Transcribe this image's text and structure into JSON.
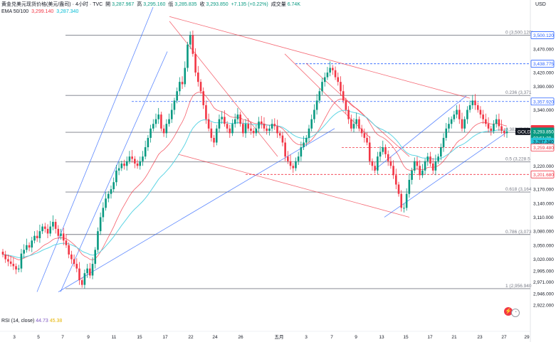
{
  "header": {
    "symbol": "黄金兑美元现货价格(美元/盎司)",
    "timeframe": "4小时",
    "source": "TVC",
    "open_label": "開",
    "open": "3,287.967",
    "high_label": "高",
    "high": "3,295.160",
    "low_label": "低",
    "low": "3,285.835",
    "close_label": "收",
    "close": "3,293.850",
    "change": "+7.135 (+0.22%)",
    "volume_label": "成交量",
    "volume": "6.74K"
  },
  "ema": {
    "label": "EMA 50/100",
    "ema50": "3,299.140",
    "ema100": "3,287.340",
    "ema50_color": "#f23645",
    "ema100_color": "#00bcd4"
  },
  "rsi": {
    "label": "RSI (14, close)",
    "value": "44.73",
    "ma": "45.38",
    "value_color": "#7e57c2",
    "ma_color": "#e6b400"
  },
  "currency": "USD",
  "buttons": {
    "flash": "⚡",
    "clock": "◔"
  },
  "chart_data": {
    "type": "candlestick",
    "ylim": [
      2905,
      3545
    ],
    "y_ticks": [
      "3,500.120",
      "3,470.000",
      "3,438.775",
      "3,420.000",
      "3,390.000",
      "3,357.920",
      "3,340.000",
      "3,299.140",
      "3,293.850",
      "3,287.340",
      "3,259.480",
      "3,220.000",
      "3,201.680",
      "3,170.000",
      "3,140.000",
      "3,110.000",
      "3,080.000",
      "3,050.000",
      "3,020.000",
      "2,995.000",
      "2,971.000",
      "2,946.000",
      "2,922.000"
    ],
    "x_ticks": [
      "3",
      "5",
      "7",
      "9",
      "11",
      "15",
      "17",
      "22",
      "24",
      "26",
      "五月",
      "3",
      "7",
      "9",
      "13",
      "15",
      "17",
      "21",
      "23",
      "27",
      "29"
    ],
    "fib_levels": [
      {
        "label": "0 (3,500.120)",
        "value": 3500.12
      },
      {
        "label": "0.236 (3,371",
        "value": 3371
      },
      {
        "label": "0.382 (3,29",
        "value": 3292
      },
      {
        "label": "0.5 (3,228.5",
        "value": 3228.5
      },
      {
        "label": "0.618 (3,164",
        "value": 3164
      },
      {
        "label": "0.786 (3,073",
        "value": 3073
      },
      {
        "label": "1 (2,956.940",
        "value": 2956.94
      }
    ],
    "price_tags": [
      {
        "value": 3500.12,
        "label": "3,500.120",
        "style": "outline"
      },
      {
        "value": 3438.775,
        "label": "3,438.775",
        "style": "outline"
      },
      {
        "value": 3357.92,
        "label": "3,357.920",
        "style": "outline"
      },
      {
        "value": 3299.14,
        "label": "3,299.140",
        "style": "ema50"
      },
      {
        "value": 3293.85,
        "label": "3,293.850",
        "style": "price"
      },
      {
        "value": 3293.85,
        "label": "03:51:30",
        "style": "price"
      },
      {
        "value": 3287.34,
        "label": "3,287.340",
        "style": "ema100"
      },
      {
        "value": 3259.48,
        "label": "3,259.480",
        "style": "outline-red"
      },
      {
        "value": 3201.68,
        "label": "3,201.680",
        "style": "outline-red"
      }
    ],
    "symbol_tag": "GOLD",
    "key_closes": [
      3030,
      3020,
      3015,
      3010,
      3005,
      2998,
      3000,
      3032,
      3040,
      3050,
      3045,
      3060,
      3070,
      3065,
      3080,
      3090,
      3085,
      3075,
      3090,
      3100,
      3085,
      3070,
      3075,
      3060,
      3050,
      3030,
      3020,
      3010,
      3000,
      2975,
      2965,
      2990,
      3000,
      2985,
      3010,
      3040,
      3080,
      3110,
      3130,
      3150,
      3160,
      3170,
      3185,
      3210,
      3215,
      3225,
      3220,
      3230,
      3240,
      3235,
      3225,
      3220,
      3230,
      3240,
      3260,
      3280,
      3300,
      3310,
      3320,
      3330,
      3300,
      3290,
      3310,
      3320,
      3340,
      3360,
      3380,
      3400,
      3395,
      3430,
      3480,
      3500,
      3460,
      3420,
      3400,
      3380,
      3350,
      3320,
      3300,
      3280,
      3270,
      3300,
      3320,
      3325,
      3310,
      3300,
      3290,
      3310,
      3320,
      3330,
      3310,
      3290,
      3310,
      3300,
      3295,
      3290,
      3300,
      3315,
      3310,
      3300,
      3295,
      3300,
      3310,
      3305,
      3290,
      3285,
      3270,
      3240,
      3230,
      3220,
      3215,
      3230,
      3240,
      3260,
      3270,
      3280,
      3300,
      3320,
      3340,
      3360,
      3380,
      3400,
      3410,
      3420,
      3430,
      3425,
      3410,
      3400,
      3380,
      3360,
      3340,
      3320,
      3300,
      3310,
      3320,
      3300,
      3290,
      3280,
      3270,
      3230,
      3220,
      3210,
      3240,
      3250,
      3260,
      3245,
      3230,
      3220,
      3200,
      3180,
      3160,
      3130,
      3130,
      3160,
      3190,
      3210,
      3230,
      3220,
      3200,
      3210,
      3230,
      3240,
      3225,
      3210,
      3230,
      3240,
      3260,
      3280,
      3300,
      3310,
      3320,
      3330,
      3340,
      3320,
      3300,
      3320,
      3340,
      3350,
      3360,
      3350,
      3340,
      3330,
      3320,
      3310,
      3300,
      3295,
      3310,
      3320,
      3305,
      3295,
      3290,
      3293.85
    ]
  }
}
